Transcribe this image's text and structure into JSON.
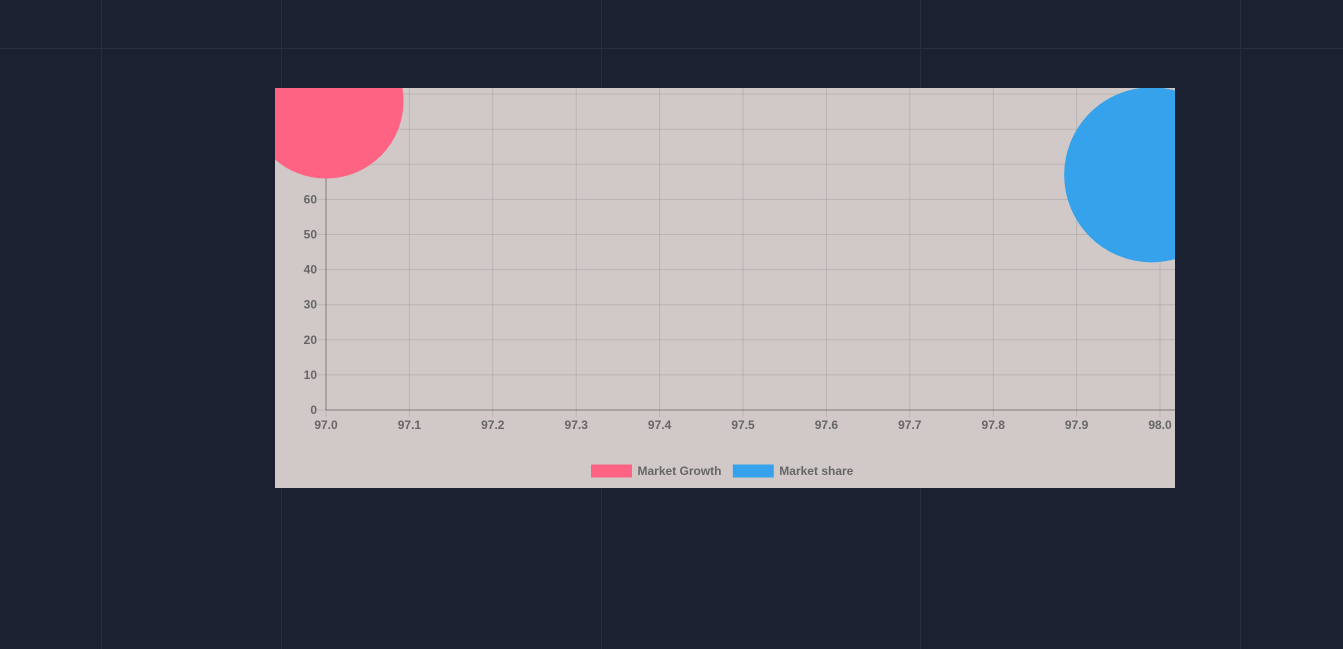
{
  "colors": {
    "page_background": "#1b2130",
    "chart_background": "#d1c9c8"
  },
  "chart_data": {
    "type": "bubble",
    "title": "",
    "xlabel": "",
    "ylabel": "",
    "xlim": [
      97.0,
      98.0
    ],
    "ylim": [
      0,
      90
    ],
    "x_ticks": [
      "97.0",
      "97.1",
      "97.2",
      "97.3",
      "97.4",
      "97.5",
      "97.6",
      "97.7",
      "97.8",
      "97.9",
      "98.0"
    ],
    "y_ticks": [
      "0",
      "10",
      "20",
      "30",
      "40",
      "50",
      "60"
    ],
    "grid": true,
    "legend_position": "bottom",
    "series": [
      {
        "name": "Market Growth",
        "color": "#ff6384",
        "points": [
          {
            "x": 97.0,
            "y": 88,
            "r": 77
          }
        ]
      },
      {
        "name": "Market share",
        "color": "#36a2eb",
        "points": [
          {
            "x": 97.99,
            "y": 67,
            "r": 87
          }
        ]
      }
    ]
  }
}
